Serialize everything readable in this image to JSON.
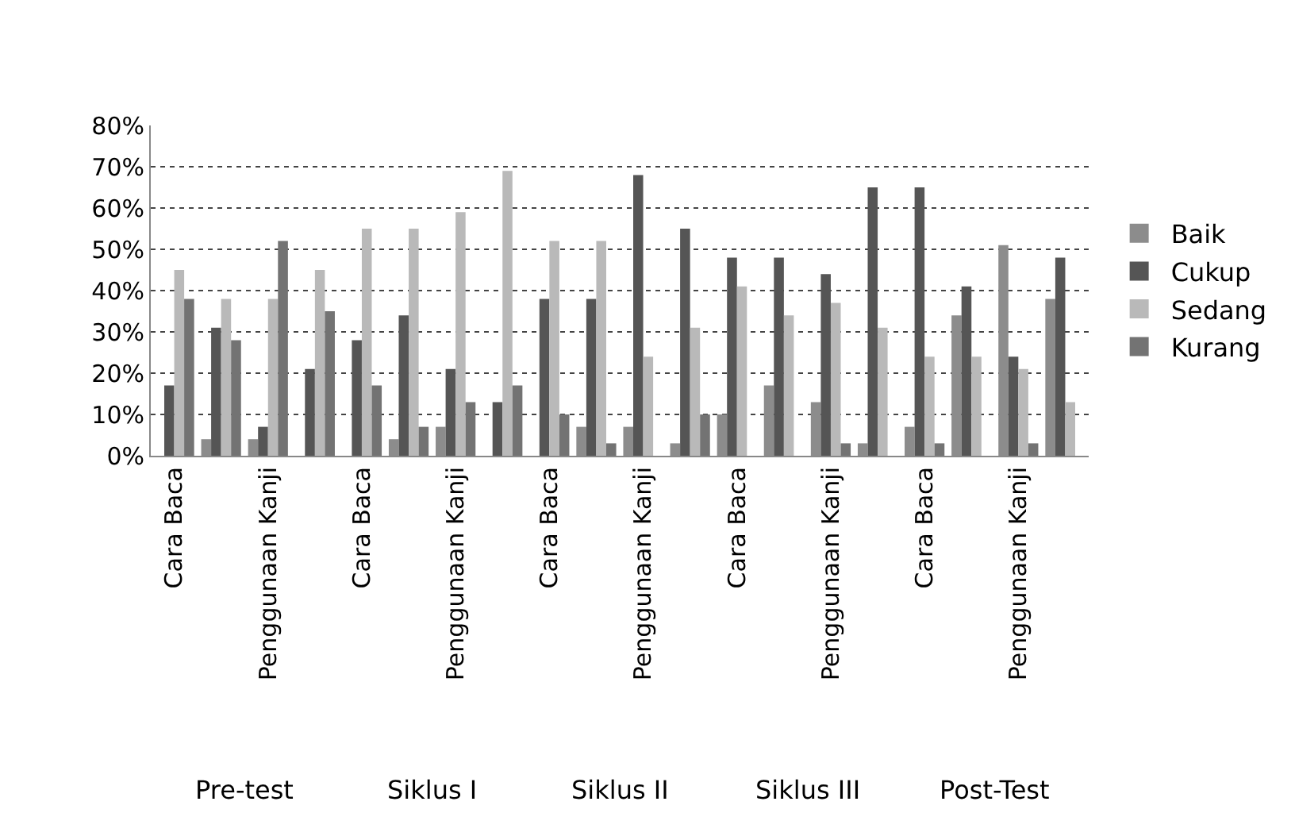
{
  "chart_data": {
    "type": "bar",
    "categories": [
      "Cara Baca",
      null,
      "Penggunaan Kanji",
      null,
      "Cara Baca",
      null,
      "Penggunaan Kanji",
      null,
      "Cara Baca",
      null,
      "Penggunaan Kanji",
      null,
      "Cara Baca",
      null,
      "Penggunaan Kanji",
      null,
      "Cara Baca",
      null,
      "Penggunaan Kanji",
      null
    ],
    "series": [
      {
        "name": "Baik",
        "color": "#8c8c8c",
        "values": [
          0,
          4,
          4,
          0,
          0,
          4,
          7,
          0,
          0,
          7,
          7,
          3,
          10,
          17,
          13,
          3,
          7,
          34,
          51,
          38
        ]
      },
      {
        "name": "Cukup",
        "color": "#555555",
        "values": [
          17,
          31,
          7,
          21,
          28,
          34,
          21,
          13,
          38,
          38,
          68,
          55,
          48,
          48,
          44,
          65,
          65,
          41,
          24,
          48
        ]
      },
      {
        "name": "Sedang",
        "color": "#b9b9b9",
        "values": [
          45,
          38,
          38,
          45,
          55,
          55,
          59,
          69,
          52,
          52,
          24,
          31,
          41,
          34,
          37,
          31,
          24,
          24,
          21,
          13
        ]
      },
      {
        "name": "Kurang",
        "color": "#737373",
        "values": [
          38,
          28,
          52,
          35,
          17,
          7,
          13,
          17,
          10,
          3,
          0,
          10,
          0,
          0,
          3,
          0,
          3,
          0,
          3,
          0
        ]
      }
    ],
    "annotations": [
      "Pre-test",
      "Siklus I",
      "Siklus II",
      "Siklus III",
      "Post-Test"
    ],
    "ylim": [
      0,
      80
    ],
    "yticks": [
      {
        "value": 0,
        "label": "0%"
      },
      {
        "value": 10,
        "label": "10%"
      },
      {
        "value": 20,
        "label": "20%"
      },
      {
        "value": 30,
        "label": "30%"
      },
      {
        "value": 40,
        "label": "40%"
      },
      {
        "value": 50,
        "label": "50%"
      },
      {
        "value": 60,
        "label": "60%"
      },
      {
        "value": 70,
        "label": "70%"
      },
      {
        "value": 80,
        "label": "80%"
      }
    ],
    "grid": "y",
    "legend": "right"
  }
}
